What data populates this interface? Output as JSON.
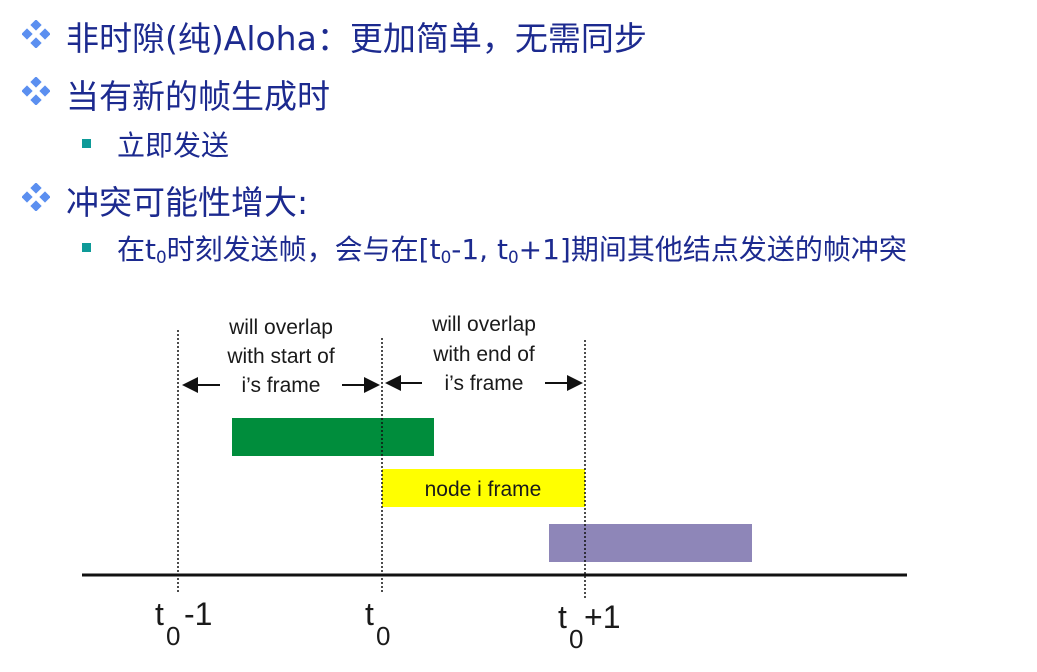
{
  "bullets": [
    {
      "level": 1,
      "text": "非时隙(纯)Aloha：更加简单，无需同步"
    },
    {
      "level": 1,
      "text": "当有新的帧生成时"
    },
    {
      "level": 2,
      "text": "立即发送"
    },
    {
      "level": 1,
      "text": "冲突可能性增大:"
    },
    {
      "level": 2,
      "parts": [
        "在t",
        "0",
        "时刻发送帧，会与在[t",
        "0",
        "-1, t",
        "0",
        "+1]期间其他结点发送的帧冲突"
      ]
    }
  ],
  "diagram": {
    "left_label": [
      "will overlap",
      "with start of",
      "i’s frame"
    ],
    "right_label": [
      "will overlap",
      "with end of",
      "i’s frame"
    ],
    "node_frame_label": "node i frame",
    "ticks": [
      {
        "base": "t",
        "sub": "0",
        "suffix": "-1"
      },
      {
        "base": "t",
        "sub": "0",
        "suffix": ""
      },
      {
        "base": "t",
        "sub": "0",
        "suffix": "+1"
      }
    ],
    "colors": {
      "earlier_frame": "#008d3c",
      "node_frame": "#ffff00",
      "later_frame": "#8e86b8"
    }
  },
  "colors": {
    "text": "#1c2a8f",
    "diamond_bullet": "#5b8ff0",
    "square_bullet": "#0e9a98"
  }
}
